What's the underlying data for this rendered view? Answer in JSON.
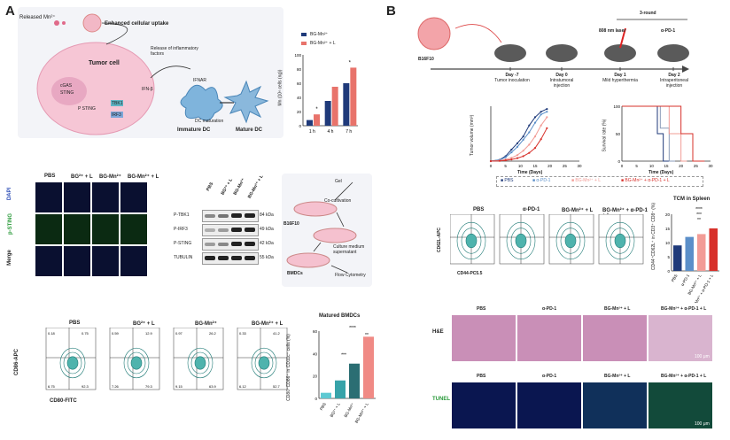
{
  "panelA": {
    "letter": "A",
    "schematic": {
      "released": "Released Mn²⁺",
      "uptake": "Enhanced cellular uptake",
      "tumor_cell": "Tumor cell",
      "release_factors": "Release of inflammatory factors",
      "ifnar": "IFNAR",
      "ifn": "IFN-β",
      "cgas": "cGAS",
      "sting": "STING",
      "psting": "P STING",
      "tbk1": "TBK1",
      "irf3": "IRF3",
      "dc_maturation": "DC maturation",
      "immature": "Immature DC",
      "mature": "Mature DC"
    },
    "uptake_chart": {
      "legend": [
        "BG-Mn²⁺",
        "BG-Mn²⁺ + L"
      ],
      "ylabel": "Mn (10⁶ cells (ng))",
      "star": "*"
    },
    "imaging": {
      "cols": [
        "PBS",
        "BG²⁺ + L",
        "BG-Mn²⁺",
        "BG-Mn²⁺ + L"
      ],
      "rows": [
        "DAPI",
        "p-STING",
        "Merge"
      ]
    },
    "western": {
      "cols": [
        "PBS",
        "BG²⁺ + L",
        "BG-Mn²⁺",
        "BG-Mn²⁺ + L"
      ],
      "rows": [
        "P-TBK1",
        "P-IRF3",
        "P-STING",
        "TUBULIN"
      ],
      "kda": [
        "84 kDa",
        "49 kDa",
        "42 kDa",
        "55 kDa"
      ]
    },
    "coculture": {
      "gel": "Gel",
      "cocult": "Co-cultivation",
      "b16": "B16F10",
      "supernatant": "Culture medium supernatant",
      "bmdcs": "BMDCs",
      "flow": "Flow Cytometry"
    },
    "flow": {
      "cols": [
        "PBS",
        "BG²⁺ + L",
        "BG-Mn²⁺",
        "BG-Mn²⁺ + L"
      ],
      "xlabel": "CD80-FITC",
      "ylabel": "CD86-APC",
      "quads": [
        [
          "0.18",
          "0.75",
          "6.75",
          "92.3"
        ],
        [
          "0.59",
          "12.9",
          "7.26",
          "79.3"
        ],
        [
          "0.97",
          "26.2",
          "9.15",
          "63.9"
        ],
        [
          "0.33",
          "41.2",
          "6.12",
          "52.7"
        ]
      ]
    },
    "bmdc_chart": {
      "title": "Matured BMDCs",
      "ylabel": "CD80⁺CD86⁺ in CD11c⁺ cells (%)",
      "sig": [
        "****",
        "**",
        "***"
      ]
    }
  },
  "panelB": {
    "letter": "B",
    "timeline": {
      "round": "3-round",
      "cell": "B16F10",
      "laser": "808 nm laser",
      "apd1": "α-PD-1",
      "steps": [
        {
          "day": "Day -7",
          "desc": "Tumor inoculation"
        },
        {
          "day": "Day 0",
          "desc": "Intratumoral injection"
        },
        {
          "day": "Day 1",
          "desc": "Mild hyperthermia"
        },
        {
          "day": "Day 2",
          "desc": "Intraperitoneal injection"
        }
      ]
    },
    "growth": {
      "ylabel": "Tumor volume (mm³)",
      "xlabel": "Time (Days)",
      "xticks": [
        "0",
        "5",
        "10",
        "15",
        "20",
        "25",
        "30"
      ]
    },
    "survival": {
      "ylabel": "Survival rate (%)",
      "xlabel": "Time (Days)",
      "xticks": [
        "0",
        "5",
        "10",
        "15",
        "20",
        "25",
        "30"
      ],
      "yticks": [
        "100",
        "50",
        "0"
      ]
    },
    "legend": [
      "PBS",
      "α-PD-1",
      "BG-Mn²⁺ + L",
      "BG-Mn²⁺ + α-PD-1 + L"
    ],
    "tcm_flow": {
      "cols": [
        "PBS",
        "α-PD-1",
        "BG-Mn²⁺ + L",
        "BG-Mn²⁺ + α-PD-1 + L"
      ],
      "xlabel": "CD44-PC5.5",
      "ylabel": "CD62L-APC"
    },
    "tcm_chart": {
      "title": "TCM in Spleen",
      "ylabel": "CD44⁺CD62L⁺ in CD3⁺ CD8⁺ (%)",
      "sig": [
        "****",
        "***",
        "**"
      ]
    },
    "he": {
      "label": "H&E",
      "cols": [
        "PBS",
        "α-PD-1",
        "BG-Mn²⁺ + L",
        "BG-Mn²⁺ + α-PD-1 + L"
      ],
      "scale": "100 μm"
    },
    "tunel": {
      "label": "TUNEL",
      "cols": [
        "PBS",
        "α-PD-1",
        "BG-Mn²⁺ + L",
        "BG-Mn²⁺ + α-PD-1 + L"
      ],
      "scale": "100 μm"
    }
  },
  "chart_data": [
    {
      "type": "bar",
      "title": "",
      "categories": [
        "1 h",
        "4 h",
        "7 h"
      ],
      "series": [
        {
          "name": "BG-Mn²⁺",
          "values": [
            8,
            35,
            60
          ],
          "color": "#1f3a7a"
        },
        {
          "name": "BG-Mn²⁺ + L",
          "values": [
            16,
            55,
            82
          ],
          "color": "#e8736b"
        }
      ],
      "xlabel": "",
      "ylabel": "Mn (10⁶ cells (ng))",
      "ylim": [
        0,
        100
      ],
      "yticks": [
        0,
        20,
        40,
        60,
        80,
        100
      ]
    },
    {
      "type": "bar",
      "title": "Matured BMDCs",
      "categories": [
        "PBS",
        "BG²⁺ + L",
        "BG-Mn²⁺",
        "BG-Mn²⁺ + L"
      ],
      "values": [
        5,
        16,
        31,
        55
      ],
      "colors": [
        "#5ec9d2",
        "#37a3a9",
        "#2b6e73",
        "#f08a85"
      ],
      "ylabel": "CD80⁺CD86⁺ in CD11c⁺ cells (%)",
      "ylim": [
        0,
        60
      ],
      "yticks": [
        0,
        20,
        40,
        60
      ]
    },
    {
      "type": "line",
      "title": "",
      "x": [
        0,
        3,
        5,
        7,
        9,
        11,
        13,
        15,
        17,
        19
      ],
      "series": [
        {
          "name": "PBS",
          "values": [
            0,
            50,
            180,
            420,
            650,
            900,
            1300,
            1600,
            1800,
            1900
          ],
          "color": "#1f3a7a"
        },
        {
          "name": "α-PD-1",
          "values": [
            0,
            40,
            140,
            320,
            520,
            780,
            1050,
            1400,
            1700,
            1800
          ],
          "color": "#5b8fc9"
        },
        {
          "name": "BG-Mn²⁺ + L",
          "values": [
            0,
            20,
            60,
            120,
            220,
            380,
            600,
            900,
            1300,
            1600
          ],
          "color": "#f29c96"
        },
        {
          "name": "BG-Mn²⁺ + α-PD-1 + L",
          "values": [
            0,
            10,
            30,
            60,
            110,
            180,
            300,
            480,
            800,
            1200
          ],
          "color": "#d7302a"
        }
      ],
      "xlabel": "Time (Days)",
      "ylabel": "Tumor volume (mm³)",
      "xlim": [
        0,
        30
      ],
      "ylim": [
        0,
        2000
      ]
    },
    {
      "type": "line",
      "title": "",
      "series": [
        {
          "name": "PBS",
          "x": [
            0,
            12,
            12,
            14,
            14,
            16
          ],
          "values": [
            100,
            100,
            50,
            50,
            0,
            0
          ],
          "color": "#1f3a7a"
        },
        {
          "name": "α-PD-1",
          "x": [
            0,
            13,
            13,
            16,
            16,
            18
          ],
          "values": [
            100,
            100,
            60,
            60,
            0,
            0
          ],
          "color": "#8a9bb8"
        },
        {
          "name": "BG-Mn²⁺ + L",
          "x": [
            0,
            16,
            16,
            20,
            20,
            22
          ],
          "values": [
            100,
            100,
            50,
            50,
            0,
            0
          ],
          "color": "#f29c96"
        },
        {
          "name": "BG-Mn²⁺ + α-PD-1 + L",
          "x": [
            0,
            20,
            20,
            24,
            24,
            28
          ],
          "values": [
            100,
            100,
            50,
            50,
            0,
            0
          ],
          "color": "#d7302a"
        }
      ],
      "xlabel": "Time (Days)",
      "ylabel": "Survival rate (%)",
      "xlim": [
        0,
        30
      ],
      "ylim": [
        0,
        100
      ]
    },
    {
      "type": "bar",
      "title": "TCM in Spleen",
      "categories": [
        "PBS",
        "α-PD-1",
        "BG-Mn²⁺ + L",
        "BG-Mn²⁺ + α-PD-1 + L"
      ],
      "values": [
        9,
        12,
        13,
        15
      ],
      "colors": [
        "#1f3a7a",
        "#5b8fc9",
        "#f29c96",
        "#d7302a"
      ],
      "ylabel": "CD44⁺CD62L⁺ in CD3⁺ CD8⁺ (%)",
      "ylim": [
        0,
        20
      ],
      "yticks": [
        0,
        5,
        10,
        15,
        20
      ]
    }
  ]
}
